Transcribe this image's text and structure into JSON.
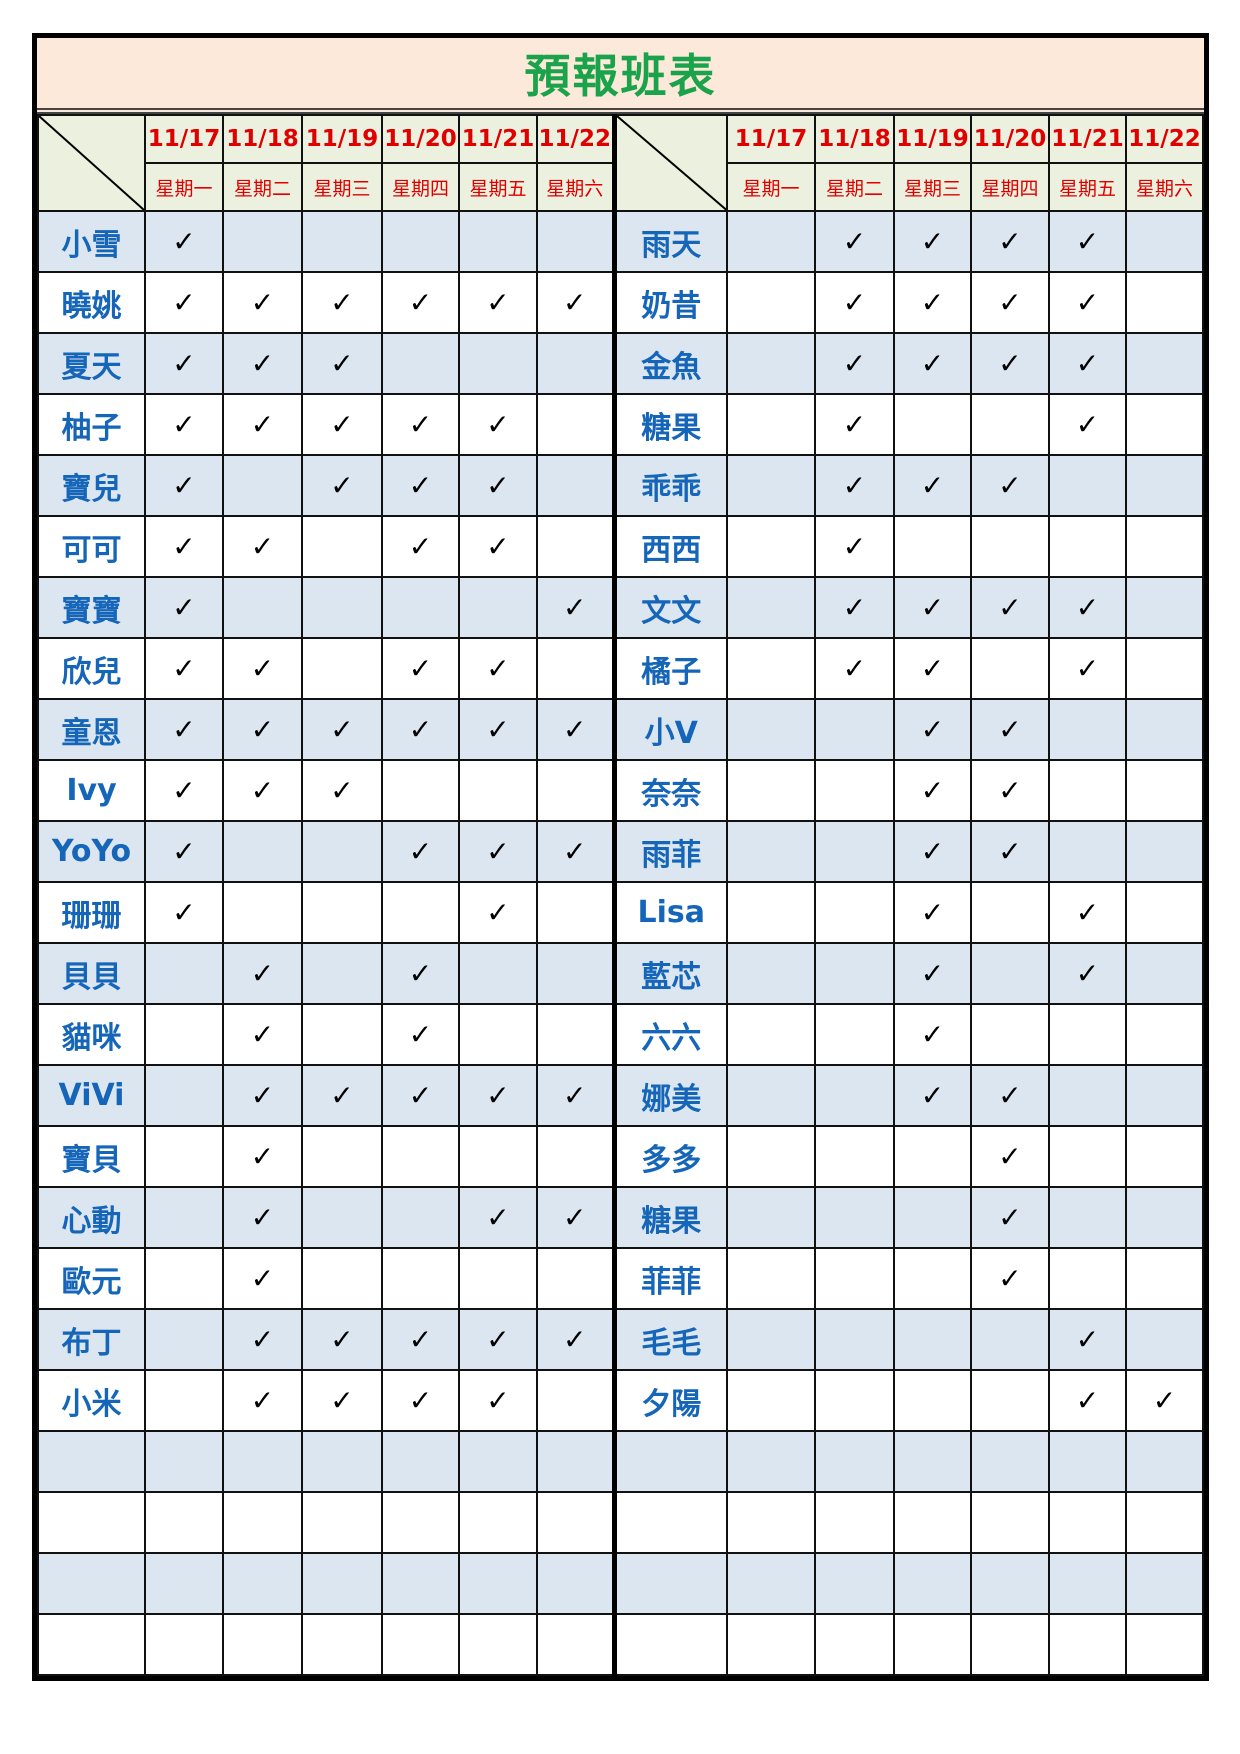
{
  "title": "預報班表",
  "colors": {
    "title_text": "#1aa34a",
    "title_bg": "#fde9d9",
    "header_bg": "#ebf1de",
    "header_text": "#e00000",
    "name_text": "#1565b8",
    "stripe": "#dce6f1"
  },
  "check_icon": "✓",
  "dates": [
    "11/17",
    "11/18",
    "11/19",
    "11/20",
    "11/21",
    "11/22"
  ],
  "weekdays": [
    "星期一",
    "星期二",
    "星期三",
    "星期四",
    "星期五",
    "星期六"
  ],
  "left": [
    {
      "name": "小雪",
      "days": [
        1,
        0,
        0,
        0,
        0,
        0
      ]
    },
    {
      "name": "曉姚",
      "days": [
        1,
        1,
        1,
        1,
        1,
        1
      ]
    },
    {
      "name": "夏天",
      "days": [
        1,
        1,
        1,
        0,
        0,
        0
      ]
    },
    {
      "name": "柚子",
      "days": [
        1,
        1,
        1,
        1,
        1,
        0
      ]
    },
    {
      "name": "寶兒",
      "days": [
        1,
        0,
        1,
        1,
        1,
        0
      ]
    },
    {
      "name": "可可",
      "days": [
        1,
        1,
        0,
        1,
        1,
        0
      ]
    },
    {
      "name": "寶寶",
      "days": [
        1,
        0,
        0,
        0,
        0,
        1
      ]
    },
    {
      "name": "欣兒",
      "days": [
        1,
        1,
        0,
        1,
        1,
        0
      ]
    },
    {
      "name": "童恩",
      "days": [
        1,
        1,
        1,
        1,
        1,
        1
      ]
    },
    {
      "name": "Ivy",
      "days": [
        1,
        1,
        1,
        0,
        0,
        0
      ]
    },
    {
      "name": "YoYo",
      "days": [
        1,
        0,
        0,
        1,
        1,
        1
      ]
    },
    {
      "name": "珊珊",
      "days": [
        1,
        0,
        0,
        0,
        1,
        0
      ]
    },
    {
      "name": "貝貝",
      "days": [
        0,
        1,
        0,
        1,
        0,
        0
      ]
    },
    {
      "name": "貓咪",
      "days": [
        0,
        1,
        0,
        1,
        0,
        0
      ]
    },
    {
      "name": "ViVi",
      "days": [
        0,
        1,
        1,
        1,
        1,
        1
      ]
    },
    {
      "name": "寶貝",
      "days": [
        0,
        1,
        0,
        0,
        0,
        0
      ]
    },
    {
      "name": "心動",
      "days": [
        0,
        1,
        0,
        0,
        1,
        1
      ]
    },
    {
      "name": "歐元",
      "days": [
        0,
        1,
        0,
        0,
        0,
        0
      ]
    },
    {
      "name": "布丁",
      "days": [
        0,
        1,
        1,
        1,
        1,
        1
      ]
    },
    {
      "name": "小米",
      "days": [
        0,
        1,
        1,
        1,
        1,
        0
      ]
    },
    {
      "name": "",
      "days": [
        0,
        0,
        0,
        0,
        0,
        0
      ]
    },
    {
      "name": "",
      "days": [
        0,
        0,
        0,
        0,
        0,
        0
      ]
    },
    {
      "name": "",
      "days": [
        0,
        0,
        0,
        0,
        0,
        0
      ]
    },
    {
      "name": "",
      "days": [
        0,
        0,
        0,
        0,
        0,
        0
      ]
    }
  ],
  "right": [
    {
      "name": "雨天",
      "days": [
        0,
        1,
        1,
        1,
        1,
        0
      ]
    },
    {
      "name": "奶昔",
      "days": [
        0,
        1,
        1,
        1,
        1,
        0
      ]
    },
    {
      "name": "金魚",
      "days": [
        0,
        1,
        1,
        1,
        1,
        0
      ]
    },
    {
      "name": "糖果",
      "days": [
        0,
        1,
        0,
        0,
        1,
        0
      ]
    },
    {
      "name": "乖乖",
      "days": [
        0,
        1,
        1,
        1,
        0,
        0
      ]
    },
    {
      "name": "西西",
      "days": [
        0,
        1,
        0,
        0,
        0,
        0
      ]
    },
    {
      "name": "文文",
      "days": [
        0,
        1,
        1,
        1,
        1,
        0
      ]
    },
    {
      "name": "橘子",
      "days": [
        0,
        1,
        1,
        0,
        1,
        0
      ]
    },
    {
      "name": "小V",
      "days": [
        0,
        0,
        1,
        1,
        0,
        0
      ]
    },
    {
      "name": "奈奈",
      "days": [
        0,
        0,
        1,
        1,
        0,
        0
      ]
    },
    {
      "name": "雨菲",
      "days": [
        0,
        0,
        1,
        1,
        0,
        0
      ]
    },
    {
      "name": "Lisa",
      "days": [
        0,
        0,
        1,
        0,
        1,
        0
      ]
    },
    {
      "name": "藍芯",
      "days": [
        0,
        0,
        1,
        0,
        1,
        0
      ]
    },
    {
      "name": "六六",
      "days": [
        0,
        0,
        1,
        0,
        0,
        0
      ]
    },
    {
      "name": "娜美",
      "days": [
        0,
        0,
        1,
        1,
        0,
        0
      ]
    },
    {
      "name": "多多",
      "days": [
        0,
        0,
        0,
        1,
        0,
        0
      ]
    },
    {
      "name": "糖果",
      "days": [
        0,
        0,
        0,
        1,
        0,
        0
      ]
    },
    {
      "name": "菲菲",
      "days": [
        0,
        0,
        0,
        1,
        0,
        0
      ]
    },
    {
      "name": "毛毛",
      "days": [
        0,
        0,
        0,
        0,
        1,
        0
      ]
    },
    {
      "name": "夕陽",
      "days": [
        0,
        0,
        0,
        0,
        1,
        1
      ]
    },
    {
      "name": "",
      "days": [
        0,
        0,
        0,
        0,
        0,
        0
      ]
    },
    {
      "name": "",
      "days": [
        0,
        0,
        0,
        0,
        0,
        0
      ]
    },
    {
      "name": "",
      "days": [
        0,
        0,
        0,
        0,
        0,
        0
      ]
    },
    {
      "name": "",
      "days": [
        0,
        0,
        0,
        0,
        0,
        0
      ]
    }
  ]
}
